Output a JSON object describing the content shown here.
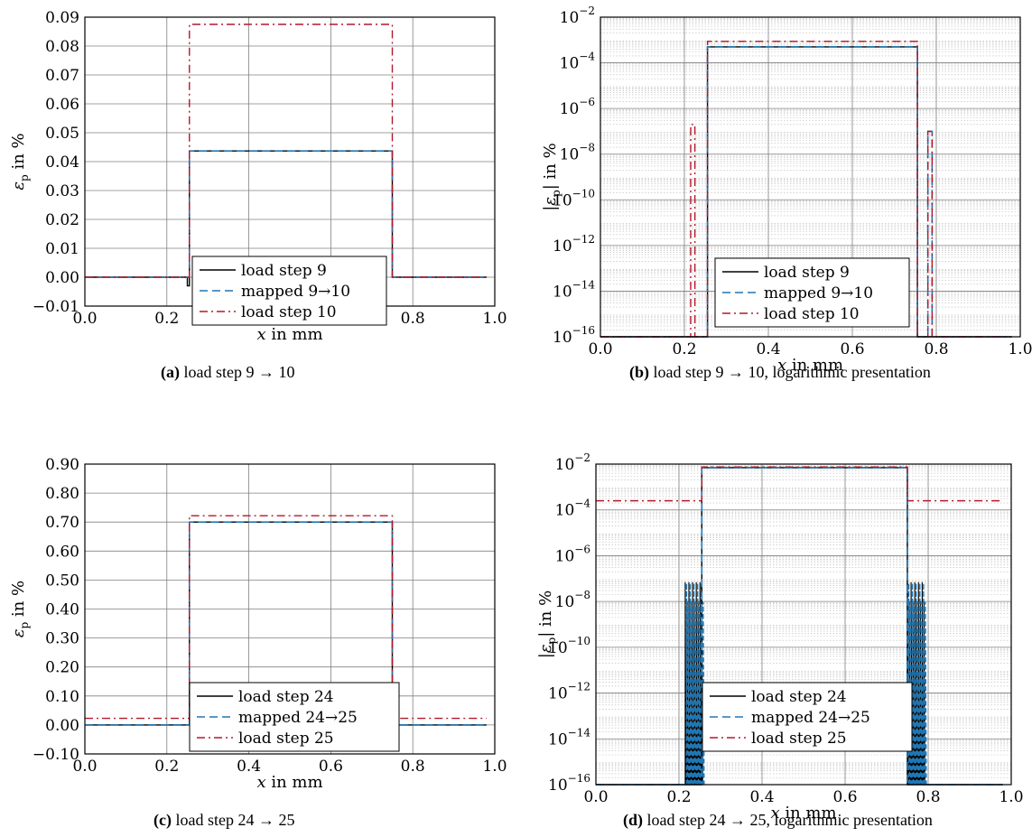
{
  "captions": [
    {
      "letter": "(a)",
      "text": "load step 9 → 10"
    },
    {
      "letter": "(b)",
      "text": "load step 9 → 10, logarithmic presentation"
    },
    {
      "letter": "(c)",
      "text": "load step 24 → 25"
    },
    {
      "letter": "(d)",
      "text": "load step 24 → 25, logarithmic presentation"
    }
  ],
  "colors": {
    "black": "#000000",
    "blue": "#1f77b4",
    "red": "#b2182b",
    "grid": "#808080"
  },
  "chart_data": [
    {
      "type": "line",
      "xlabel": "x in mm",
      "ylabel": "εp in %",
      "xlim": [
        0.0,
        1.0
      ],
      "ylim": [
        -0.01,
        0.09
      ],
      "xticks": [
        "0.0",
        "0.2",
        "0.4",
        "0.6",
        "0.8",
        "1.0"
      ],
      "yticks": [
        "−0.01",
        "0.00",
        "0.01",
        "0.02",
        "0.03",
        "0.04",
        "0.05",
        "0.06",
        "0.07",
        "0.08",
        "0.09"
      ],
      "yscale": "linear",
      "grid": true,
      "legend_placement": "lower-center",
      "series": [
        {
          "name": "load step 9",
          "style": "solid",
          "color": "#000000",
          "x": [
            0.0,
            0.25,
            0.25,
            0.255,
            0.255,
            0.75,
            0.75,
            0.98
          ],
          "y": [
            0.0,
            0.0,
            -0.003,
            -0.003,
            0.0437,
            0.0437,
            0.0,
            0.0
          ]
        },
        {
          "name": "mapped 9→10",
          "style": "dashed",
          "color": "#1f77b4",
          "x": [
            0.0,
            0.255,
            0.255,
            0.75,
            0.75,
            0.98
          ],
          "y": [
            0.0,
            0.0,
            0.0437,
            0.0437,
            0.0,
            0.0
          ]
        },
        {
          "name": "load step 10",
          "style": "dashdot",
          "color": "#b2182b",
          "x": [
            0.0,
            0.255,
            0.255,
            0.75,
            0.75,
            0.98
          ],
          "y": [
            0.0,
            0.0,
            0.0875,
            0.0875,
            0.0,
            0.0
          ]
        }
      ]
    },
    {
      "type": "line",
      "xlabel": "x in mm",
      "ylabel": "|εp| in %",
      "xlim": [
        0.0,
        1.0
      ],
      "ylim": [
        1e-16,
        0.01
      ],
      "xticks": [
        "0.0",
        "0.2",
        "0.4",
        "0.6",
        "0.8",
        "1.0"
      ],
      "yticks": [
        "10^-16",
        "10^-14",
        "10^-12",
        "10^-10",
        "10^-8",
        "10^-6",
        "10^-4",
        "10^-2"
      ],
      "yscale": "log",
      "grid": true,
      "legend_placement": "lower-center",
      "series": [
        {
          "name": "load step 9",
          "style": "solid",
          "color": "#000000",
          "x": [
            0.0,
            0.255,
            0.255,
            0.755,
            0.755,
            0.98
          ],
          "y": [
            1e-16,
            1e-16,
            0.0005,
            0.0005,
            1e-16,
            1e-16
          ]
        },
        {
          "name": "mapped 9→10",
          "style": "dashed",
          "color": "#1f77b4",
          "x": [
            0.0,
            0.255,
            0.255,
            0.755,
            0.755,
            0.78,
            0.78,
            0.79,
            0.79,
            0.98
          ],
          "y": [
            1e-16,
            1e-16,
            0.0005,
            0.0005,
            1e-16,
            1e-16,
            1e-07,
            1e-07,
            1e-16,
            1e-16
          ]
        },
        {
          "name": "load step 10",
          "style": "dashdot",
          "color": "#b2182b",
          "x": [
            0.0,
            0.215,
            0.215,
            0.225,
            0.225,
            0.255,
            0.255,
            0.755,
            0.755,
            0.78,
            0.78,
            0.79,
            0.79,
            0.98
          ],
          "y": [
            1e-16,
            1e-16,
            2e-07,
            2e-07,
            1e-16,
            1e-16,
            0.00087,
            0.00087,
            1e-16,
            1e-16,
            1e-07,
            1e-07,
            1e-16,
            1e-16
          ]
        }
      ]
    },
    {
      "type": "line",
      "xlabel": "x in mm",
      "ylabel": "εp in %",
      "xlim": [
        0.0,
        1.0
      ],
      "ylim": [
        -0.1,
        0.9
      ],
      "xticks": [
        "0.0",
        "0.2",
        "0.4",
        "0.6",
        "0.8",
        "1.0"
      ],
      "yticks": [
        "−0.10",
        "0.00",
        "0.10",
        "0.20",
        "0.30",
        "0.40",
        "0.50",
        "0.60",
        "0.70",
        "0.80",
        "0.90"
      ],
      "yscale": "linear",
      "grid": true,
      "legend_placement": "lower-center",
      "series": [
        {
          "name": "load step 24",
          "style": "solid",
          "color": "#000000",
          "x": [
            0.0,
            0.255,
            0.255,
            0.75,
            0.75,
            0.98
          ],
          "y": [
            0.0,
            0.0,
            0.7,
            0.7,
            0.0,
            0.0
          ]
        },
        {
          "name": "mapped 24→25",
          "style": "dashed",
          "color": "#1f77b4",
          "x": [
            0.0,
            0.255,
            0.255,
            0.75,
            0.75,
            0.98
          ],
          "y": [
            0.0,
            0.0,
            0.7,
            0.7,
            0.0,
            0.0
          ]
        },
        {
          "name": "load step 25",
          "style": "dashdot",
          "color": "#b2182b",
          "x": [
            0.0,
            0.255,
            0.255,
            0.75,
            0.75,
            0.98
          ],
          "y": [
            0.023,
            0.023,
            0.722,
            0.722,
            0.023,
            0.023
          ]
        }
      ]
    },
    {
      "type": "line",
      "xlabel": "x in mm",
      "ylabel": "|εp| in %",
      "xlim": [
        0.0,
        1.0
      ],
      "ylim": [
        1e-16,
        0.01
      ],
      "xticks": [
        "0.0",
        "0.2",
        "0.4",
        "0.6",
        "0.8",
        "1.0"
      ],
      "yticks": [
        "10^-16",
        "10^-14",
        "10^-12",
        "10^-10",
        "10^-8",
        "10^-6",
        "10^-4",
        "10^-2"
      ],
      "yscale": "log",
      "grid": true,
      "legend_placement": "lower-center",
      "oscillation_bands": [
        [
          0.215,
          0.255
        ],
        [
          0.75,
          0.79
        ]
      ],
      "oscillation_peak": 7e-08,
      "series": [
        {
          "name": "load step 24",
          "style": "solid",
          "color": "#000000",
          "x": [
            0.0,
            0.215,
            0.255,
            0.255,
            0.75,
            0.75,
            0.79,
            0.98
          ],
          "y": [
            1e-16,
            1e-16,
            1e-16,
            0.007,
            0.007,
            1e-16,
            1e-16,
            1e-16
          ]
        },
        {
          "name": "mapped 24→25",
          "style": "dashed",
          "color": "#1f77b4",
          "x": [
            0.0,
            0.215,
            0.255,
            0.255,
            0.75,
            0.75,
            0.79,
            0.98
          ],
          "y": [
            1e-16,
            1e-16,
            1e-16,
            0.007,
            0.007,
            1e-16,
            1e-16,
            1e-16
          ]
        },
        {
          "name": "load step 25",
          "style": "dashdot",
          "color": "#b2182b",
          "x": [
            0.0,
            0.255,
            0.255,
            0.75,
            0.75,
            0.98
          ],
          "y": [
            0.00025,
            0.00025,
            0.0075,
            0.0075,
            0.00025,
            0.00025
          ]
        }
      ]
    }
  ]
}
